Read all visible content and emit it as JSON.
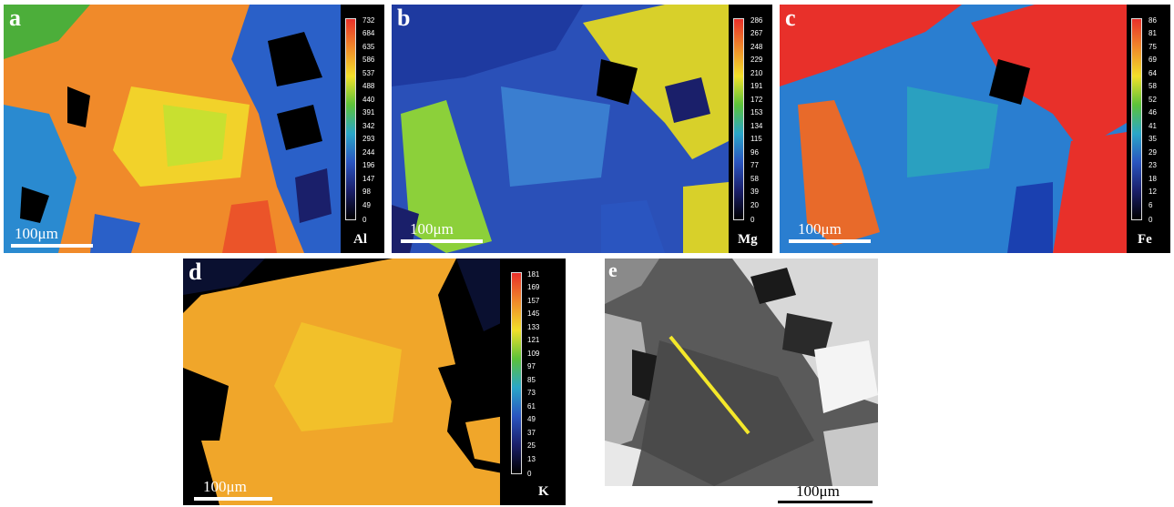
{
  "panels": {
    "a": {
      "label": "a",
      "element": "Al",
      "scale": "100μm",
      "ticks": [
        "732",
        "684",
        "635",
        "586",
        "537",
        "488",
        "440",
        "391",
        "342",
        "293",
        "244",
        "196",
        "147",
        "98",
        "49",
        "0"
      ]
    },
    "b": {
      "label": "b",
      "element": "Mg",
      "scale": "100μm",
      "ticks": [
        "286",
        "267",
        "248",
        "229",
        "210",
        "191",
        "172",
        "153",
        "134",
        "115",
        "96",
        "77",
        "58",
        "39",
        "20",
        "0"
      ]
    },
    "c": {
      "label": "c",
      "element": "Fe",
      "scale": "100μm",
      "ticks": [
        "86",
        "81",
        "75",
        "69",
        "64",
        "58",
        "52",
        "46",
        "41",
        "35",
        "29",
        "23",
        "18",
        "12",
        "6",
        "0"
      ]
    },
    "d": {
      "label": "d",
      "element": "K",
      "scale": "100μm",
      "ticks": [
        "181",
        "169",
        "157",
        "145",
        "133",
        "121",
        "109",
        "97",
        "85",
        "73",
        "61",
        "49",
        "37",
        "25",
        "13",
        "0"
      ]
    },
    "e": {
      "label": "e",
      "scale": "100μm"
    }
  },
  "colors": {
    "red": "#e8302a",
    "orange": "#f08a2a",
    "yellow": "#f2e02a",
    "green": "#5cc23a",
    "cyan": "#2aa6c8",
    "blue": "#2a55c0",
    "navy": "#1a1f6a",
    "black": "#000000"
  }
}
